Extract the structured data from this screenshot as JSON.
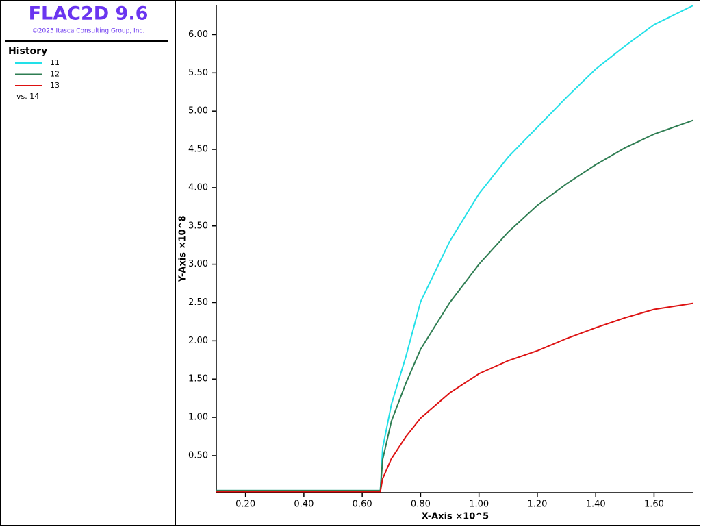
{
  "header": {
    "title": "FLAC2D 9.6",
    "copyright": "©2025 Itasca Consulting Group, Inc."
  },
  "chart_data": {
    "type": "line",
    "legend_title": "History",
    "x_versus": "vs. 14",
    "xlabel": "X-Axis ×10^5",
    "ylabel": "Y-Axis ×10^8",
    "x": [
      0.1,
      0.662,
      0.67,
      0.7,
      0.75,
      0.8,
      0.9,
      1.0,
      1.1,
      1.2,
      1.3,
      1.4,
      1.5,
      1.6,
      1.734
    ],
    "series": [
      {
        "name": "11",
        "color": "#22e0e8",
        "values": [
          0.044,
          0.044,
          0.6,
          1.17,
          1.8,
          2.51,
          3.3,
          3.92,
          4.4,
          4.79,
          5.18,
          5.55,
          5.85,
          6.13,
          6.38
        ]
      },
      {
        "name": "12",
        "color": "#2e7d52",
        "values": [
          0.044,
          0.044,
          0.45,
          0.95,
          1.45,
          1.89,
          2.5,
          3.0,
          3.42,
          3.77,
          4.05,
          4.3,
          4.52,
          4.7,
          4.88
        ]
      },
      {
        "name": "13",
        "color": "#dd1111",
        "values": [
          0.03,
          0.03,
          0.2,
          0.46,
          0.75,
          0.99,
          1.32,
          1.57,
          1.74,
          1.87,
          2.03,
          2.17,
          2.3,
          2.41,
          2.49
        ]
      }
    ],
    "xlim": [
      0.1,
      1.735
    ],
    "ylim": [
      0.025,
      6.38
    ],
    "xticks": [
      {
        "value": 0.2,
        "label": "0.20"
      },
      {
        "value": 0.4,
        "label": "0.40"
      },
      {
        "value": 0.6,
        "label": "0.60"
      },
      {
        "value": 0.8,
        "label": "0.80"
      },
      {
        "value": 1.0,
        "label": "1.00"
      },
      {
        "value": 1.2,
        "label": "1.20"
      },
      {
        "value": 1.4,
        "label": "1.40"
      },
      {
        "value": 1.6,
        "label": "1.60"
      }
    ],
    "yticks": [
      {
        "value": 0.5,
        "label": "0.50"
      },
      {
        "value": 1.0,
        "label": "1.00"
      },
      {
        "value": 1.5,
        "label": "1.50"
      },
      {
        "value": 2.0,
        "label": "2.00"
      },
      {
        "value": 2.5,
        "label": "2.50"
      },
      {
        "value": 3.0,
        "label": "3.00"
      },
      {
        "value": 3.5,
        "label": "3.50"
      },
      {
        "value": 4.0,
        "label": "4.00"
      },
      {
        "value": 4.5,
        "label": "4.50"
      },
      {
        "value": 5.0,
        "label": "5.00"
      },
      {
        "value": 5.5,
        "label": "5.50"
      },
      {
        "value": 6.0,
        "label": "6.00"
      }
    ]
  }
}
